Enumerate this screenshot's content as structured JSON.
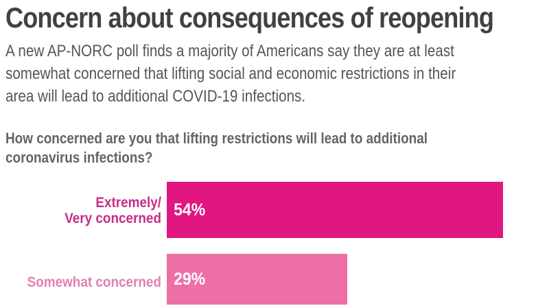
{
  "page": {
    "title": "Concern about consequences of reopening",
    "subtitle_lines": [
      "A new AP-NORC poll finds a majority of Americans say they are at least",
      "somewhat concerned that lifting social and economic restrictions in their",
      "area will lead to additional COVID-19 infections."
    ],
    "question_lines": [
      "How concerned are you that lifting restrictions will lead to additional",
      "coronavirus infections?"
    ]
  },
  "colors": {
    "title_text": "#414145",
    "subtitle_text": "#55555a",
    "question_text": "#646468",
    "bar_value_text": "#ffffff"
  },
  "chart_data": {
    "type": "bar",
    "orientation": "horizontal",
    "title": "How concerned are you that lifting restrictions will lead to additional coronavirus infections?",
    "unit": "%",
    "categories": [
      "Extremely/Very concerned",
      "Somewhat concerned"
    ],
    "values": [
      54,
      29
    ],
    "xlim": [
      0,
      100
    ],
    "axis": "none",
    "grid": false,
    "legend": "none",
    "data_labels": "inside-left",
    "bars": [
      {
        "label_lines": [
          "Extremely/",
          "Very concerned"
        ],
        "value": 54,
        "value_label": "54%",
        "bar_color": "#e11680",
        "label_color": "#c52e8a"
      },
      {
        "label_lines": [
          "Somewhat concerned"
        ],
        "value": 29,
        "value_label": "29%",
        "bar_color": "#ee6fa6",
        "label_color": "#df82b3"
      }
    ]
  }
}
